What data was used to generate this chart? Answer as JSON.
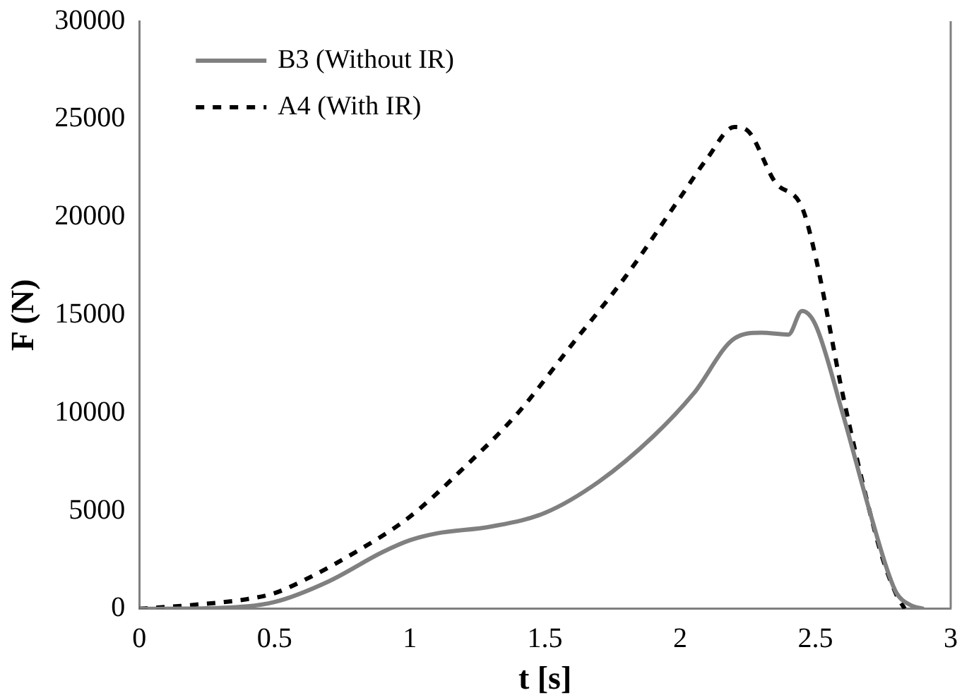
{
  "chart_data": {
    "type": "line",
    "xlabel": "t [s]",
    "ylabel": "F (N)",
    "xlim": [
      0,
      3
    ],
    "xticks": [
      0,
      0.5,
      1,
      1.5,
      2,
      2.5,
      3
    ],
    "ylim": [
      0,
      30000
    ],
    "yticks": [
      0,
      5000,
      10000,
      15000,
      20000,
      25000,
      30000
    ],
    "grid": false,
    "legend": "top left",
    "marker": "none",
    "series": [
      {
        "name": "B3 (Without IR)",
        "color": "#808080",
        "line_style": "solid",
        "x": [
          0,
          0.3,
          0.5,
          0.7,
          0.9,
          1.0,
          1.1,
          1.3,
          1.5,
          1.7,
          1.9,
          2.05,
          2.2,
          2.3,
          2.4,
          2.45,
          2.5,
          2.6,
          2.7,
          2.77,
          2.8,
          2.85,
          2.9
        ],
        "values": [
          0,
          50,
          350,
          1400,
          2900,
          3500,
          3850,
          4200,
          4900,
          6500,
          8800,
          11000,
          13800,
          14100,
          14000,
          15200,
          14500,
          10000,
          5000,
          1800,
          800,
          200,
          0
        ]
      },
      {
        "name": "A4 (With IR)",
        "color": "#000000",
        "line_style": "dashed",
        "x": [
          0,
          0.2,
          0.4,
          0.5,
          0.6,
          0.8,
          1.0,
          1.2,
          1.4,
          1.6,
          1.8,
          2.0,
          2.1,
          2.2,
          2.25,
          2.35,
          2.45,
          2.5,
          2.6,
          2.7,
          2.75,
          2.8,
          2.83
        ],
        "values": [
          0,
          200,
          500,
          800,
          1400,
          2900,
          4700,
          7200,
          10000,
          13500,
          17000,
          21000,
          23000,
          24600,
          24400,
          21800,
          20500,
          18000,
          11000,
          5000,
          2500,
          700,
          0
        ]
      }
    ]
  }
}
